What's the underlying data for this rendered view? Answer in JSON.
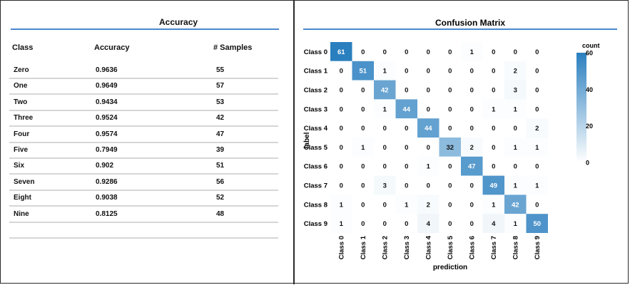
{
  "accuracy_panel": {
    "title": "Accuracy",
    "columns": [
      "Class",
      "Accuracy",
      "# Samples"
    ],
    "rows": [
      [
        "Zero",
        "0.9636",
        "55"
      ],
      [
        "One",
        "0.9649",
        "57"
      ],
      [
        "Two",
        "0.9434",
        "53"
      ],
      [
        "Three",
        "0.9524",
        "42"
      ],
      [
        "Four",
        "0.9574",
        "47"
      ],
      [
        "Five",
        "0.7949",
        "39"
      ],
      [
        "Six",
        "0.902",
        "51"
      ],
      [
        "Seven",
        "0.9286",
        "56"
      ],
      [
        "Eight",
        "0.9038",
        "52"
      ],
      [
        "Nine",
        "0.8125",
        "48"
      ]
    ]
  },
  "chart_data": {
    "type": "heatmap",
    "title": "Confusion Matrix",
    "xlabel": "prediction",
    "ylabel": "label",
    "x_categories": [
      "Class 0",
      "Class 1",
      "Class 2",
      "Class 3",
      "Class 4",
      "Class 5",
      "Class 6",
      "Class 7",
      "Class 8",
      "Class 9"
    ],
    "y_categories": [
      "Class 0",
      "Class 1",
      "Class 2",
      "Class 3",
      "Class 4",
      "Class 5",
      "Class 6",
      "Class 7",
      "Class 8",
      "Class 9"
    ],
    "values": [
      [
        61,
        0,
        0,
        0,
        0,
        0,
        1,
        0,
        0,
        0
      ],
      [
        0,
        51,
        1,
        0,
        0,
        0,
        0,
        0,
        2,
        0
      ],
      [
        0,
        0,
        42,
        0,
        0,
        0,
        0,
        0,
        3,
        0
      ],
      [
        0,
        0,
        1,
        44,
        0,
        0,
        0,
        1,
        1,
        0
      ],
      [
        0,
        0,
        0,
        0,
        44,
        0,
        0,
        0,
        0,
        2
      ],
      [
        0,
        1,
        0,
        0,
        0,
        32,
        2,
        0,
        1,
        1
      ],
      [
        0,
        0,
        0,
        0,
        1,
        0,
        47,
        0,
        0,
        0
      ],
      [
        0,
        0,
        3,
        0,
        0,
        0,
        0,
        49,
        1,
        1
      ],
      [
        1,
        0,
        0,
        1,
        2,
        0,
        0,
        1,
        42,
        0
      ],
      [
        1,
        0,
        0,
        0,
        4,
        0,
        0,
        4,
        1,
        50
      ]
    ],
    "colorbar": {
      "title": "count",
      "range": [
        0,
        60
      ],
      "ticks": [
        0,
        20,
        40,
        60
      ],
      "color_low": "#ffffff",
      "color_high": "#2a7fbf"
    }
  }
}
